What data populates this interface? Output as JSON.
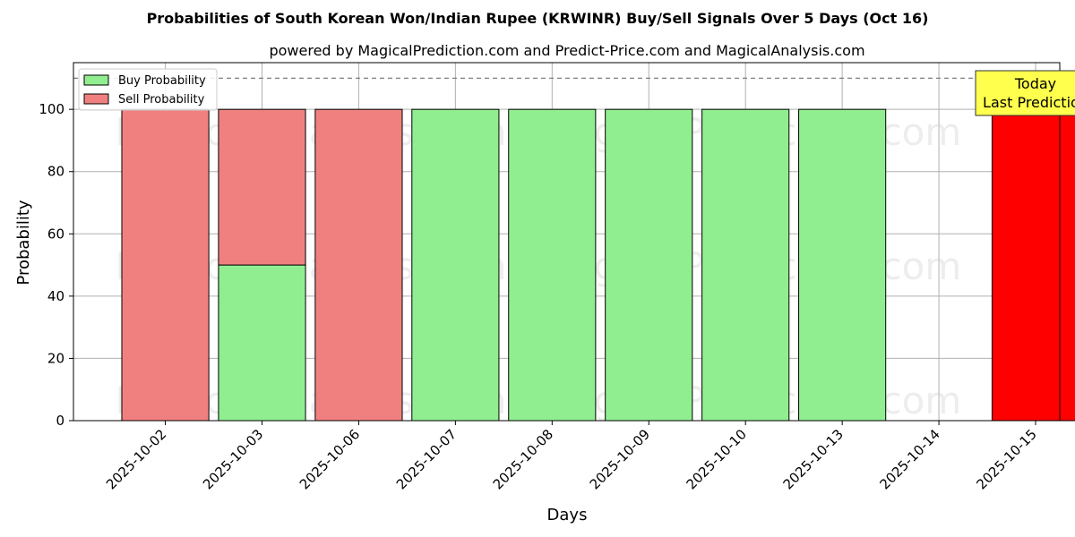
{
  "chart_data": {
    "type": "bar",
    "stacked": true,
    "title": "Probabilities of South Korean Won/Indian Rupee (KRWINR) Buy/Sell Signals Over 5 Days (Oct 16)",
    "subtitle": "powered by MagicalPrediction.com and Predict-Price.com and MagicalAnalysis.com",
    "xlabel": "Days",
    "ylabel": "Probability",
    "ylim": [
      0,
      115
    ],
    "yticks": [
      0,
      20,
      40,
      60,
      80,
      100
    ],
    "reference_line": 110,
    "grid": true,
    "legend_position": "top-left",
    "categories": [
      "2025-10-02",
      "2025-10-03",
      "2025-10-06",
      "2025-10-07",
      "2025-10-08",
      "2025-10-09",
      "2025-10-10",
      "2025-10-13",
      "2025-10-14",
      "2025-10-15"
    ],
    "series": [
      {
        "name": "Buy Probability",
        "color": "#90ee90",
        "values": [
          0,
          50,
          0,
          100,
          100,
          100,
          100,
          100,
          0,
          0
        ]
      },
      {
        "name": "Sell Probability",
        "color": "#f08080",
        "values": [
          100,
          50,
          100,
          0,
          0,
          0,
          0,
          0,
          0,
          0
        ]
      }
    ],
    "highlight": {
      "category": "2025-10-15",
      "value": 100,
      "color": "#ff0000",
      "label_line1": "Today",
      "label_line2": "Last Prediction"
    },
    "watermarks": [
      "MagicalAnalysis.com",
      "MagicalPrediction.com"
    ]
  }
}
